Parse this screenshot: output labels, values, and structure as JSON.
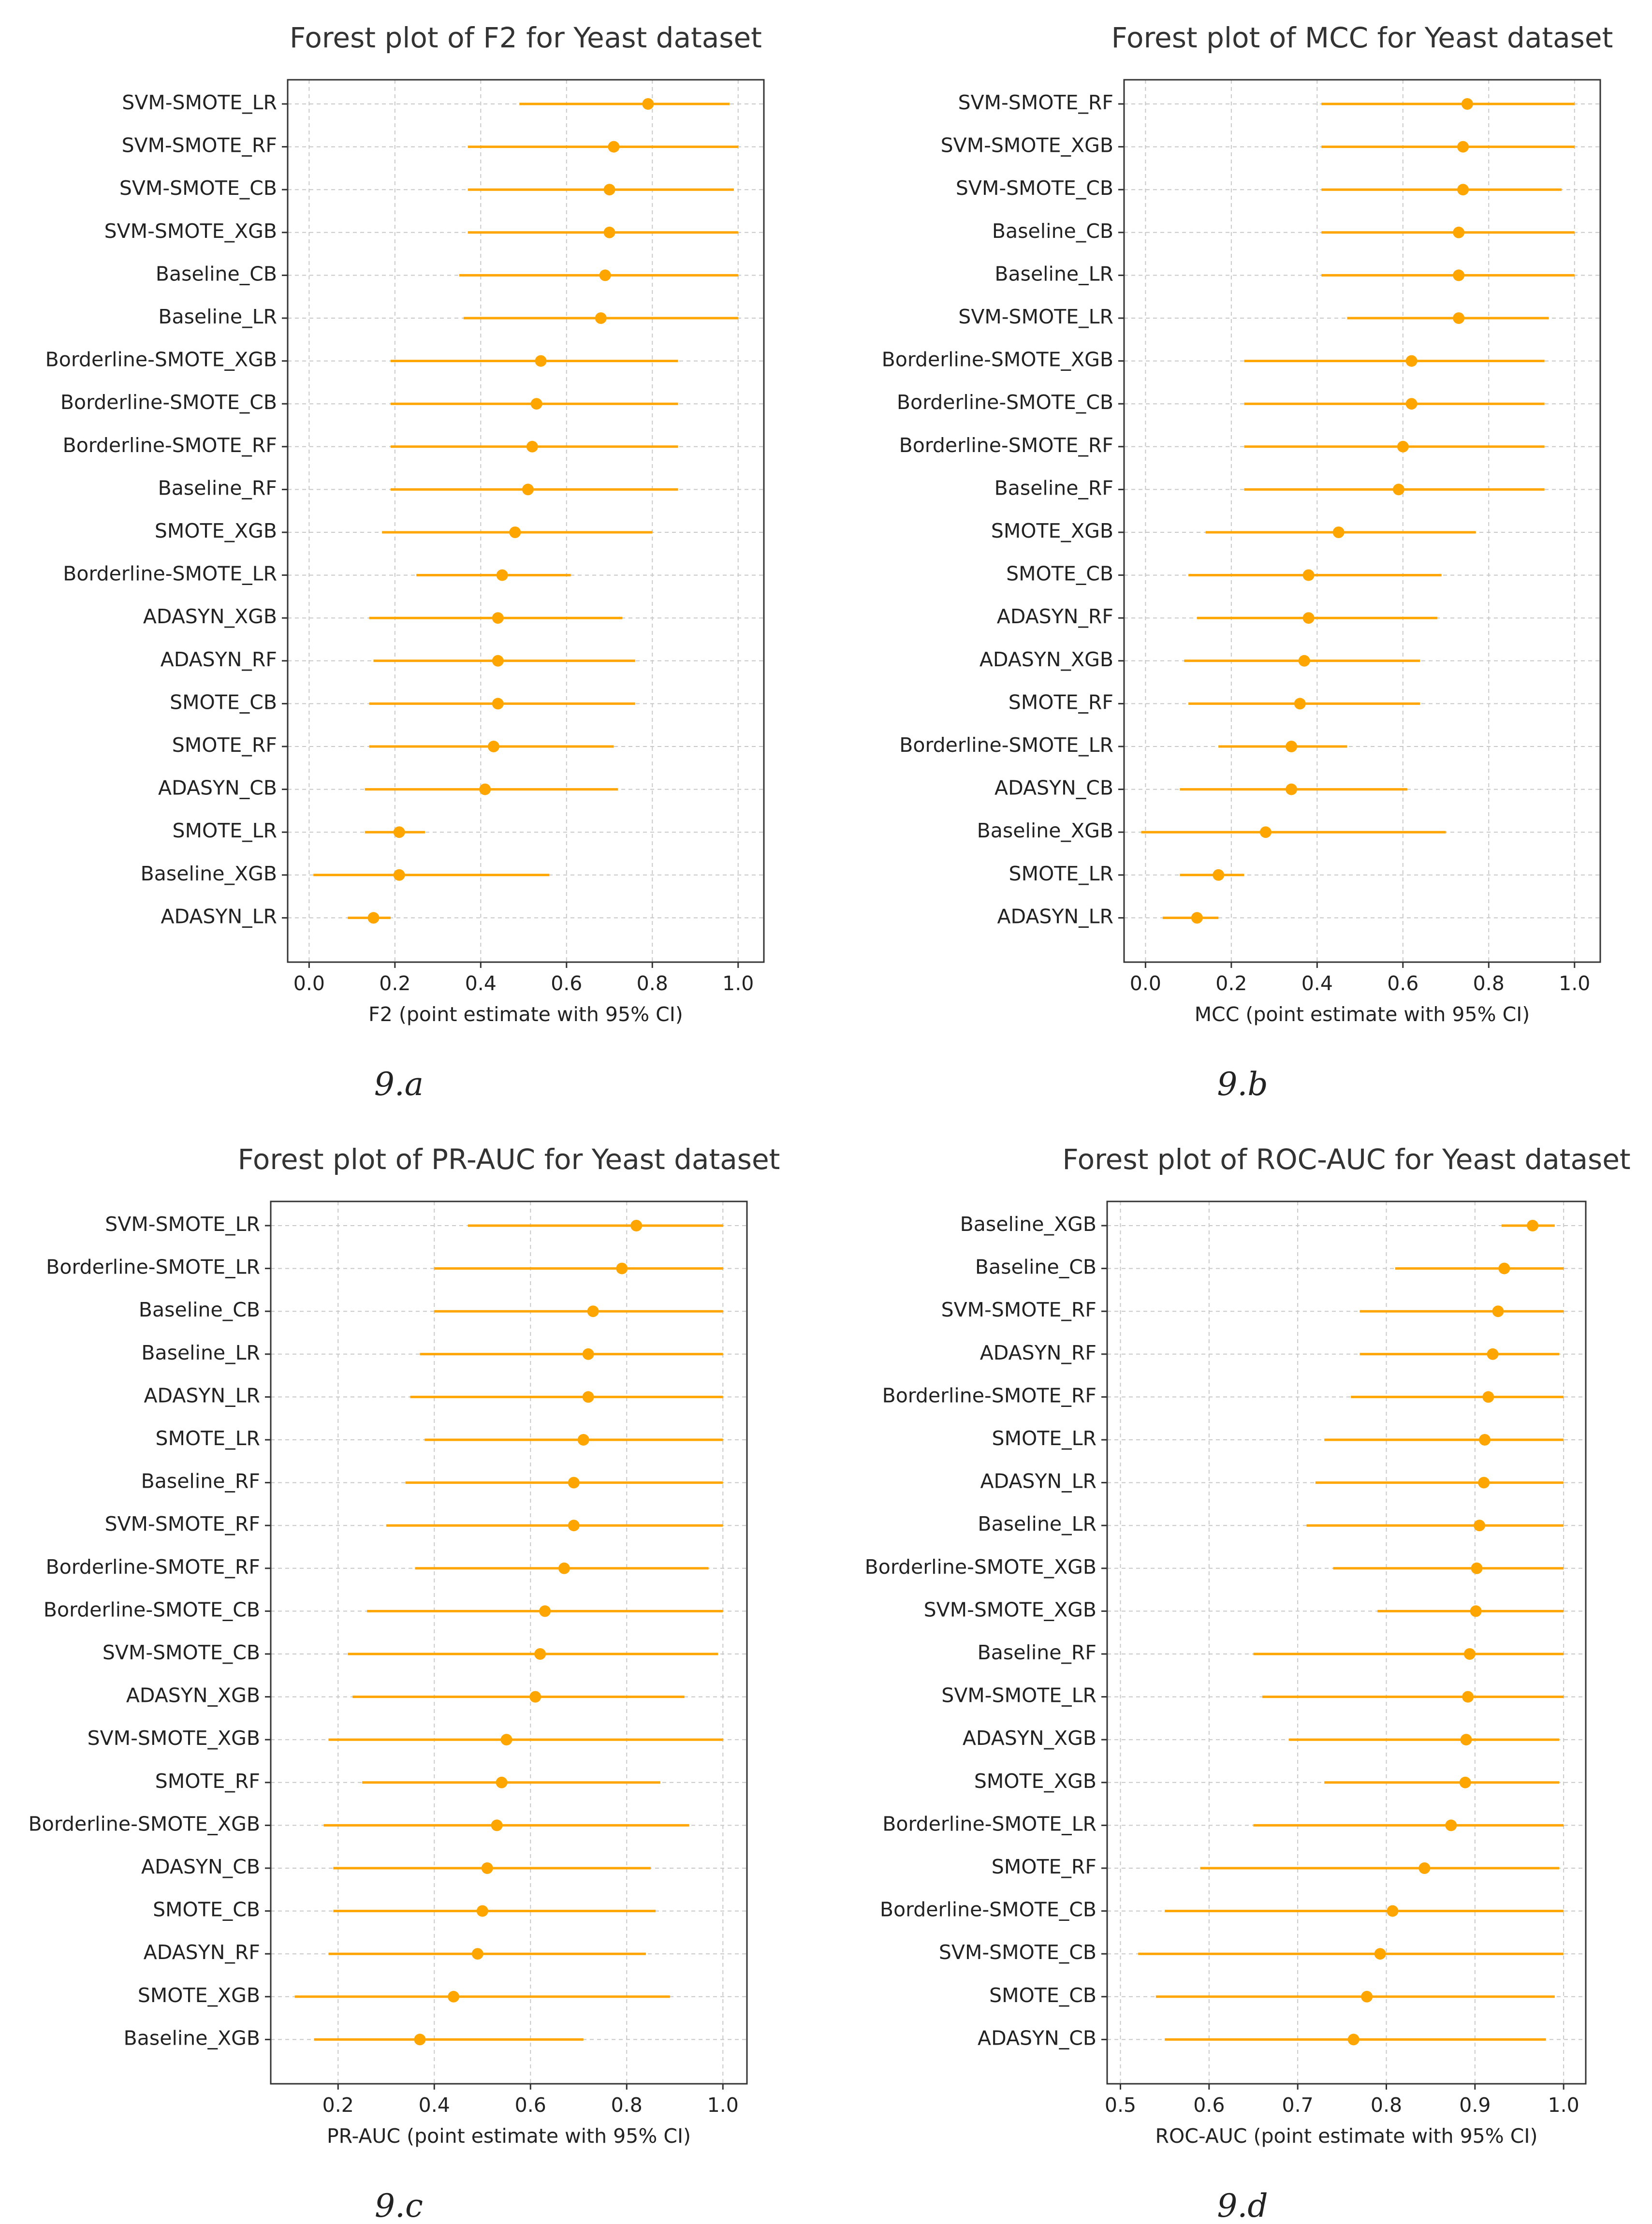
{
  "chart_data": [
    {
      "type": "forest",
      "title": "Forest plot of F2 for Yeast dataset",
      "xlabel": "F2 (point estimate with 95% CI)",
      "xlim": [
        -0.05,
        1.06
      ],
      "xticks": [
        0.0,
        0.2,
        0.4,
        0.6,
        0.8,
        1.0
      ],
      "xtick_labels": [
        "0.0",
        "0.2",
        "0.4",
        "0.6",
        "0.8",
        "1.0"
      ],
      "caption": "9.a",
      "color": "#FFA500",
      "grid": true,
      "rows": [
        {
          "label": "SVM-SMOTE_LR",
          "est": 0.79,
          "lo": 0.49,
          "hi": 0.98
        },
        {
          "label": "SVM-SMOTE_RF",
          "est": 0.71,
          "lo": 0.37,
          "hi": 1.0
        },
        {
          "label": "SVM-SMOTE_CB",
          "est": 0.7,
          "lo": 0.37,
          "hi": 0.99
        },
        {
          "label": "SVM-SMOTE_XGB",
          "est": 0.7,
          "lo": 0.37,
          "hi": 1.0
        },
        {
          "label": "Baseline_CB",
          "est": 0.69,
          "lo": 0.35,
          "hi": 1.0
        },
        {
          "label": "Baseline_LR",
          "est": 0.68,
          "lo": 0.36,
          "hi": 1.0
        },
        {
          "label": "Borderline-SMOTE_XGB",
          "est": 0.54,
          "lo": 0.19,
          "hi": 0.86
        },
        {
          "label": "Borderline-SMOTE_CB",
          "est": 0.53,
          "lo": 0.19,
          "hi": 0.86
        },
        {
          "label": "Borderline-SMOTE_RF",
          "est": 0.52,
          "lo": 0.19,
          "hi": 0.86
        },
        {
          "label": "Baseline_RF",
          "est": 0.51,
          "lo": 0.19,
          "hi": 0.86
        },
        {
          "label": "SMOTE_XGB",
          "est": 0.48,
          "lo": 0.17,
          "hi": 0.8
        },
        {
          "label": "Borderline-SMOTE_LR",
          "est": 0.45,
          "lo": 0.25,
          "hi": 0.61
        },
        {
          "label": "ADASYN_XGB",
          "est": 0.44,
          "lo": 0.14,
          "hi": 0.73
        },
        {
          "label": "ADASYN_RF",
          "est": 0.44,
          "lo": 0.15,
          "hi": 0.76
        },
        {
          "label": "SMOTE_CB",
          "est": 0.44,
          "lo": 0.14,
          "hi": 0.76
        },
        {
          "label": "SMOTE_RF",
          "est": 0.43,
          "lo": 0.14,
          "hi": 0.71
        },
        {
          "label": "ADASYN_CB",
          "est": 0.41,
          "lo": 0.13,
          "hi": 0.72
        },
        {
          "label": "SMOTE_LR",
          "est": 0.21,
          "lo": 0.13,
          "hi": 0.27
        },
        {
          "label": "Baseline_XGB",
          "est": 0.21,
          "lo": 0.01,
          "hi": 0.56
        },
        {
          "label": "ADASYN_LR",
          "est": 0.15,
          "lo": 0.09,
          "hi": 0.19
        }
      ]
    },
    {
      "type": "forest",
      "title": "Forest plot of MCC for Yeast dataset",
      "xlabel": "MCC (point estimate with 95% CI)",
      "xlim": [
        -0.05,
        1.06
      ],
      "xticks": [
        0.0,
        0.2,
        0.4,
        0.6,
        0.8,
        1.0
      ],
      "xtick_labels": [
        "0.0",
        "0.2",
        "0.4",
        "0.6",
        "0.8",
        "1.0"
      ],
      "caption": "9.b",
      "color": "#FFA500",
      "grid": true,
      "rows": [
        {
          "label": "SVM-SMOTE_RF",
          "est": 0.75,
          "lo": 0.41,
          "hi": 1.0
        },
        {
          "label": "SVM-SMOTE_XGB",
          "est": 0.74,
          "lo": 0.41,
          "hi": 1.0
        },
        {
          "label": "SVM-SMOTE_CB",
          "est": 0.74,
          "lo": 0.41,
          "hi": 0.97
        },
        {
          "label": "Baseline_CB",
          "est": 0.73,
          "lo": 0.41,
          "hi": 1.0
        },
        {
          "label": "Baseline_LR",
          "est": 0.73,
          "lo": 0.41,
          "hi": 1.0
        },
        {
          "label": "SVM-SMOTE_LR",
          "est": 0.73,
          "lo": 0.47,
          "hi": 0.94
        },
        {
          "label": "Borderline-SMOTE_XGB",
          "est": 0.62,
          "lo": 0.23,
          "hi": 0.93
        },
        {
          "label": "Borderline-SMOTE_CB",
          "est": 0.62,
          "lo": 0.23,
          "hi": 0.93
        },
        {
          "label": "Borderline-SMOTE_RF",
          "est": 0.6,
          "lo": 0.23,
          "hi": 0.93
        },
        {
          "label": "Baseline_RF",
          "est": 0.59,
          "lo": 0.23,
          "hi": 0.93
        },
        {
          "label": "SMOTE_XGB",
          "est": 0.45,
          "lo": 0.14,
          "hi": 0.77
        },
        {
          "label": "SMOTE_CB",
          "est": 0.38,
          "lo": 0.1,
          "hi": 0.69
        },
        {
          "label": "ADASYN_RF",
          "est": 0.38,
          "lo": 0.12,
          "hi": 0.68
        },
        {
          "label": "ADASYN_XGB",
          "est": 0.37,
          "lo": 0.09,
          "hi": 0.64
        },
        {
          "label": "SMOTE_RF",
          "est": 0.36,
          "lo": 0.1,
          "hi": 0.64
        },
        {
          "label": "Borderline-SMOTE_LR",
          "est": 0.34,
          "lo": 0.17,
          "hi": 0.47
        },
        {
          "label": "ADASYN_CB",
          "est": 0.34,
          "lo": 0.08,
          "hi": 0.61
        },
        {
          "label": "Baseline_XGB",
          "est": 0.28,
          "lo": -0.01,
          "hi": 0.7
        },
        {
          "label": "SMOTE_LR",
          "est": 0.17,
          "lo": 0.08,
          "hi": 0.23
        },
        {
          "label": "ADASYN_LR",
          "est": 0.12,
          "lo": 0.04,
          "hi": 0.17
        }
      ]
    },
    {
      "type": "forest",
      "title": "Forest plot of PR-AUC for Yeast dataset",
      "xlabel": "PR-AUC (point estimate with 95% CI)",
      "xlim": [
        0.06,
        1.05
      ],
      "xticks": [
        0.2,
        0.4,
        0.6,
        0.8,
        1.0
      ],
      "xtick_labels": [
        "0.2",
        "0.4",
        "0.6",
        "0.8",
        "1.0"
      ],
      "caption": "9.c",
      "color": "#FFA500",
      "grid": true,
      "rows": [
        {
          "label": "SVM-SMOTE_LR",
          "est": 0.82,
          "lo": 0.47,
          "hi": 1.0
        },
        {
          "label": "Borderline-SMOTE_LR",
          "est": 0.79,
          "lo": 0.4,
          "hi": 1.0
        },
        {
          "label": "Baseline_CB",
          "est": 0.73,
          "lo": 0.4,
          "hi": 1.0
        },
        {
          "label": "Baseline_LR",
          "est": 0.72,
          "lo": 0.37,
          "hi": 1.0
        },
        {
          "label": "ADASYN_LR",
          "est": 0.72,
          "lo": 0.35,
          "hi": 1.0
        },
        {
          "label": "SMOTE_LR",
          "est": 0.71,
          "lo": 0.38,
          "hi": 1.0
        },
        {
          "label": "Baseline_RF",
          "est": 0.69,
          "lo": 0.34,
          "hi": 1.0
        },
        {
          "label": "SVM-SMOTE_RF",
          "est": 0.69,
          "lo": 0.3,
          "hi": 1.0
        },
        {
          "label": "Borderline-SMOTE_RF",
          "est": 0.67,
          "lo": 0.36,
          "hi": 0.97
        },
        {
          "label": "Borderline-SMOTE_CB",
          "est": 0.63,
          "lo": 0.26,
          "hi": 1.0
        },
        {
          "label": "SVM-SMOTE_CB",
          "est": 0.62,
          "lo": 0.22,
          "hi": 0.99
        },
        {
          "label": "ADASYN_XGB",
          "est": 0.61,
          "lo": 0.23,
          "hi": 0.92
        },
        {
          "label": "SVM-SMOTE_XGB",
          "est": 0.55,
          "lo": 0.18,
          "hi": 1.0
        },
        {
          "label": "SMOTE_RF",
          "est": 0.54,
          "lo": 0.25,
          "hi": 0.87
        },
        {
          "label": "Borderline-SMOTE_XGB",
          "est": 0.53,
          "lo": 0.17,
          "hi": 0.93
        },
        {
          "label": "ADASYN_CB",
          "est": 0.51,
          "lo": 0.19,
          "hi": 0.85
        },
        {
          "label": "SMOTE_CB",
          "est": 0.5,
          "lo": 0.19,
          "hi": 0.86
        },
        {
          "label": "ADASYN_RF",
          "est": 0.49,
          "lo": 0.18,
          "hi": 0.84
        },
        {
          "label": "SMOTE_XGB",
          "est": 0.44,
          "lo": 0.11,
          "hi": 0.89
        },
        {
          "label": "Baseline_XGB",
          "est": 0.37,
          "lo": 0.15,
          "hi": 0.71
        }
      ]
    },
    {
      "type": "forest",
      "title": "Forest plot of ROC-AUC for Yeast dataset",
      "xlabel": "ROC-AUC (point estimate with 95% CI)",
      "xlim": [
        0.485,
        1.025
      ],
      "xticks": [
        0.5,
        0.6,
        0.7,
        0.8,
        0.9,
        1.0
      ],
      "xtick_labels": [
        "0.5",
        "0.6",
        "0.7",
        "0.8",
        "0.9",
        "1.0"
      ],
      "caption": "9.d",
      "color": "#FFA500",
      "grid": true,
      "rows": [
        {
          "label": "Baseline_XGB",
          "est": 0.965,
          "lo": 0.93,
          "hi": 0.99
        },
        {
          "label": "Baseline_CB",
          "est": 0.933,
          "lo": 0.81,
          "hi": 1.0
        },
        {
          "label": "SVM-SMOTE_RF",
          "est": 0.926,
          "lo": 0.77,
          "hi": 1.0
        },
        {
          "label": "ADASYN_RF",
          "est": 0.92,
          "lo": 0.77,
          "hi": 0.995
        },
        {
          "label": "Borderline-SMOTE_RF",
          "est": 0.915,
          "lo": 0.76,
          "hi": 1.0
        },
        {
          "label": "SMOTE_LR",
          "est": 0.911,
          "lo": 0.73,
          "hi": 1.0
        },
        {
          "label": "ADASYN_LR",
          "est": 0.91,
          "lo": 0.72,
          "hi": 1.0
        },
        {
          "label": "Baseline_LR",
          "est": 0.905,
          "lo": 0.71,
          "hi": 1.0
        },
        {
          "label": "Borderline-SMOTE_XGB",
          "est": 0.902,
          "lo": 0.74,
          "hi": 1.0
        },
        {
          "label": "SVM-SMOTE_XGB",
          "est": 0.901,
          "lo": 0.79,
          "hi": 1.0
        },
        {
          "label": "Baseline_RF",
          "est": 0.894,
          "lo": 0.65,
          "hi": 1.0
        },
        {
          "label": "SVM-SMOTE_LR",
          "est": 0.892,
          "lo": 0.66,
          "hi": 1.0
        },
        {
          "label": "ADASYN_XGB",
          "est": 0.89,
          "lo": 0.69,
          "hi": 0.995
        },
        {
          "label": "SMOTE_XGB",
          "est": 0.889,
          "lo": 0.73,
          "hi": 0.995
        },
        {
          "label": "Borderline-SMOTE_LR",
          "est": 0.873,
          "lo": 0.65,
          "hi": 1.0
        },
        {
          "label": "SMOTE_RF",
          "est": 0.843,
          "lo": 0.59,
          "hi": 0.995
        },
        {
          "label": "Borderline-SMOTE_CB",
          "est": 0.807,
          "lo": 0.55,
          "hi": 1.0
        },
        {
          "label": "SVM-SMOTE_CB",
          "est": 0.793,
          "lo": 0.52,
          "hi": 1.0
        },
        {
          "label": "SMOTE_CB",
          "est": 0.778,
          "lo": 0.54,
          "hi": 0.99
        },
        {
          "label": "ADASYN_CB",
          "est": 0.763,
          "lo": 0.55,
          "hi": 0.98
        }
      ]
    }
  ]
}
